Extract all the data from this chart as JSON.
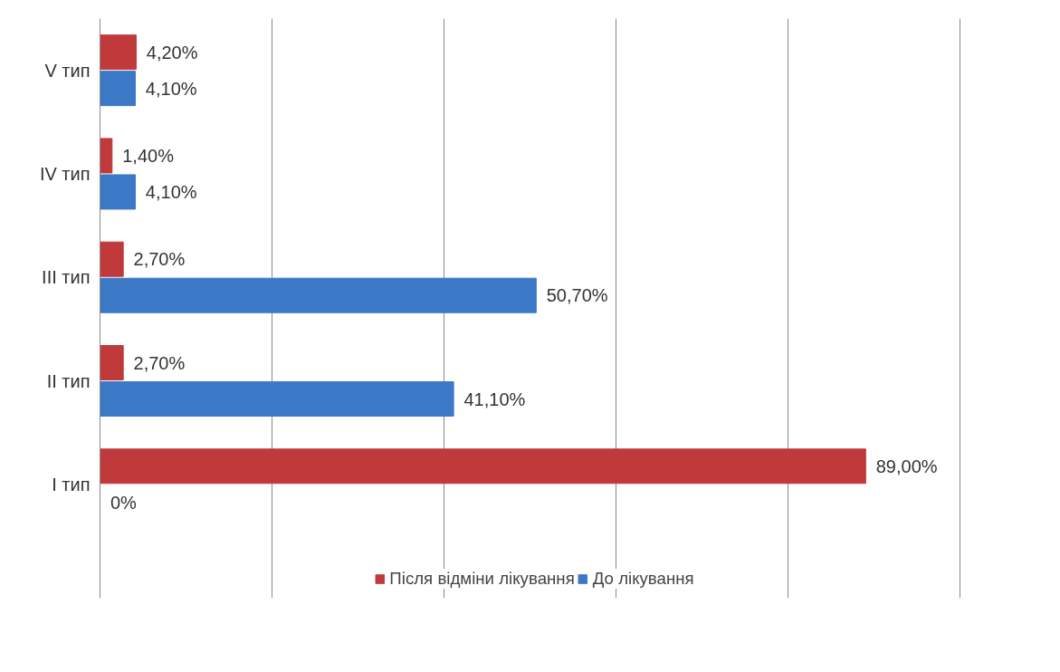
{
  "chart_data": {
    "type": "bar",
    "orientation": "horizontal",
    "categories": [
      "V тип",
      "IV тип",
      "III тип",
      "II тип",
      "I тип"
    ],
    "series": [
      {
        "name": "Після відміни лікування",
        "color": "#c0393b",
        "values": [
          4.2,
          1.4,
          2.7,
          2.7,
          89.0
        ],
        "value_labels": [
          "4,20%",
          "1,40%",
          "2,70%",
          "2,70%",
          "89,00%"
        ]
      },
      {
        "name": "До лікування",
        "color": "#3b78c6",
        "values": [
          4.1,
          4.1,
          50.7,
          41.1,
          0
        ],
        "value_labels": [
          "4,10%",
          "4,10%",
          "50,70%",
          "41,10%",
          "0%"
        ]
      }
    ],
    "tick_labels": "y",
    "grid": "x",
    "legend": "bottom"
  }
}
